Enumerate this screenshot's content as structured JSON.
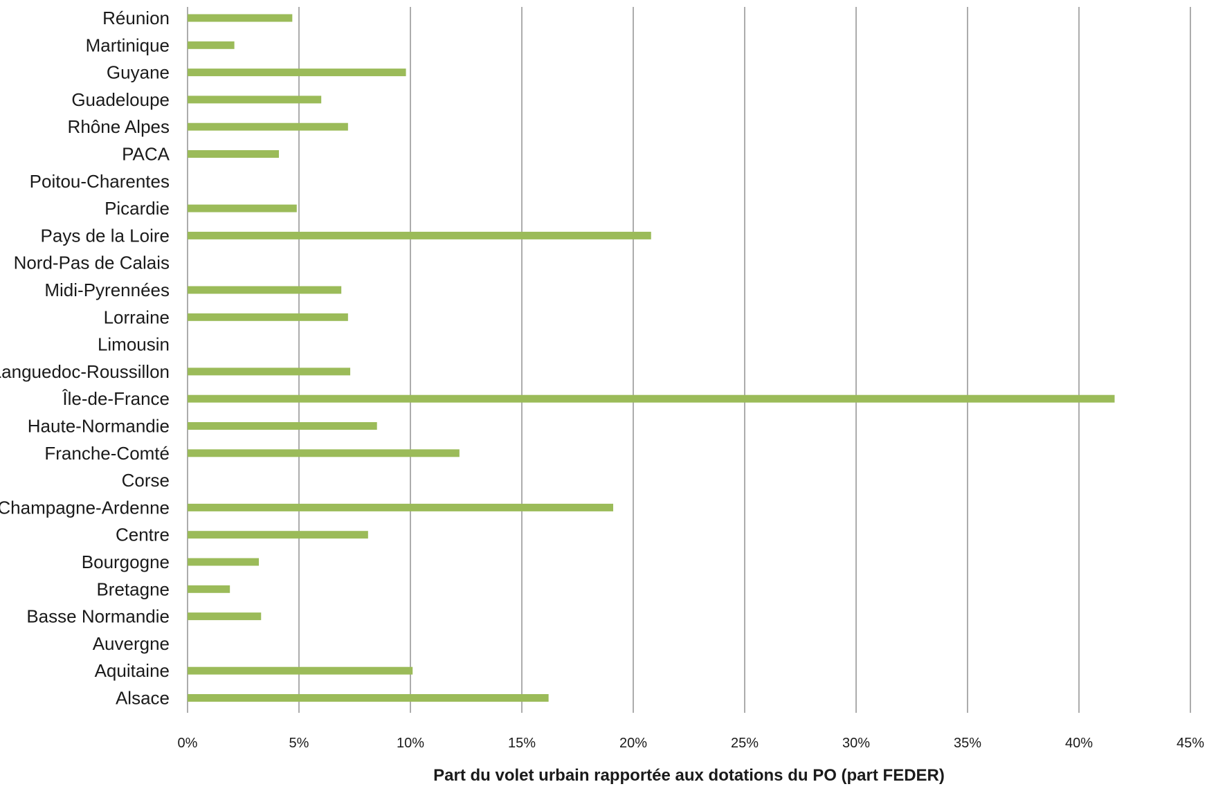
{
  "chart_data": {
    "type": "bar",
    "orientation": "horizontal",
    "categories": [
      "Réunion",
      "Martinique",
      "Guyane",
      "Guadeloupe",
      "Rhône Alpes",
      "PACA",
      "Poitou-Charentes",
      "Picardie",
      "Pays de la Loire",
      "Nord-Pas de Calais",
      "Midi-Pyrennées",
      "Lorraine",
      "Limousin",
      "Languedoc-Roussillon",
      "Île-de-France",
      "Haute-Normandie",
      "Franche-Comté",
      "Corse",
      "Champagne-Ardenne",
      "Centre",
      "Bourgogne",
      "Bretagne",
      "Basse Normandie",
      "Auvergne",
      "Aquitaine",
      "Alsace"
    ],
    "values": [
      4.7,
      2.1,
      9.8,
      6.0,
      7.2,
      4.1,
      0,
      4.9,
      20.8,
      0,
      6.9,
      7.2,
      0,
      7.3,
      41.6,
      8.5,
      12.2,
      0,
      19.1,
      8.1,
      3.2,
      1.9,
      3.3,
      0,
      10.1,
      16.2
    ],
    "xlabel": "Part du volet urbain rapportée aux dotations du PO (part FEDER)",
    "ylabel": "",
    "xlim": [
      0,
      45
    ],
    "xticks": [
      "0%",
      "5%",
      "10%",
      "15%",
      "20%",
      "25%",
      "30%",
      "35%",
      "40%",
      "45%"
    ],
    "grid": "vertical",
    "bar_color": "#9bbb59",
    "grid_color": "#808080"
  }
}
